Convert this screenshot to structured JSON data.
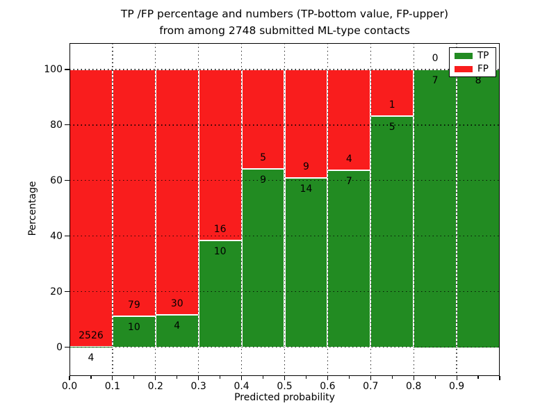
{
  "title": {
    "line1": "TP /FP percentage and numbers (TP-bottom value, FP-upper)",
    "line2": "from among 2748 submitted ML-type contacts"
  },
  "chart_data": {
    "type": "bar",
    "subtype": "stacked-percentage-histogram",
    "title": "TP /FP percentage and numbers (TP-bottom value, FP-upper) from among 2748 submitted ML-type contacts",
    "xlabel": "Predicted probability",
    "ylabel": "Percentage",
    "total_contacts": 2748,
    "xlim": [
      0.0,
      1.0
    ],
    "ylim": [
      -10.3,
      109.5
    ],
    "bin_width": 0.1,
    "categories": [
      "0.0-0.1",
      "0.1-0.2",
      "0.2-0.3",
      "0.3-0.4",
      "0.4-0.5",
      "0.5-0.6",
      "0.6-0.7",
      "0.7-0.8",
      "0.8-0.9",
      "0.9-1.0"
    ],
    "x_tick_labels": [
      "0.0",
      "0.1",
      "0.2",
      "0.3",
      "0.4",
      "0.5",
      "0.6",
      "0.7",
      "0.8",
      "0.9"
    ],
    "y_ticks": [
      0,
      20,
      40,
      60,
      80,
      100
    ],
    "y_tick_labels": [
      "0",
      "20",
      "40",
      "60",
      "80",
      "100"
    ],
    "grid": "dotted, both axes, on top of bars",
    "series": [
      {
        "name": "TP",
        "color": "#228b22",
        "counts": [
          4,
          10,
          4,
          10,
          9,
          14,
          7,
          5,
          7,
          8
        ],
        "percent": [
          0.16,
          11.24,
          11.76,
          38.46,
          64.29,
          60.87,
          63.64,
          83.33,
          100,
          100
        ]
      },
      {
        "name": "FP",
        "color": "#f91d1d",
        "counts": [
          2526,
          79,
          30,
          16,
          5,
          9,
          4,
          1,
          0,
          0
        ],
        "percent": [
          99.84,
          88.76,
          88.24,
          61.54,
          35.71,
          39.13,
          36.36,
          16.67,
          0,
          0
        ]
      }
    ],
    "bar_value_labels": {
      "fp_visible": [
        "2526",
        "79",
        "30",
        "16",
        "5",
        "9",
        "4",
        "1",
        "0",
        ""
      ],
      "tp_visible": [
        "4",
        "10",
        "4",
        "10",
        "9",
        "14",
        "7",
        "5",
        "7",
        "8"
      ]
    },
    "legend": {
      "position": "upper right",
      "entries": [
        {
          "label": "TP",
          "color": "#228b22"
        },
        {
          "label": "FP",
          "color": "#f91d1d"
        }
      ]
    }
  }
}
